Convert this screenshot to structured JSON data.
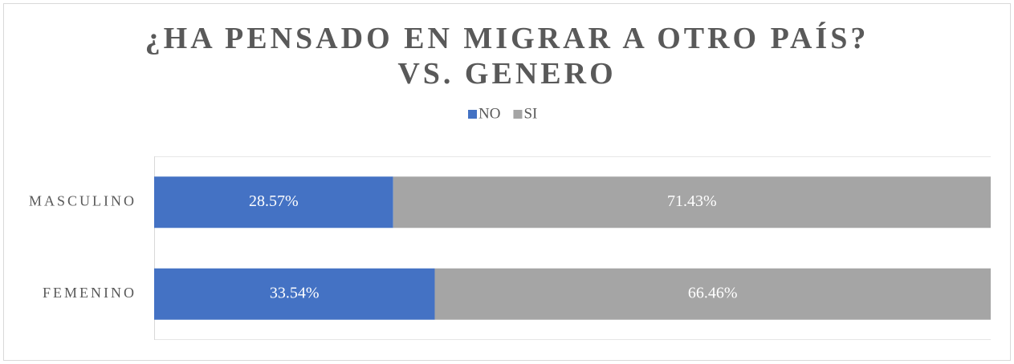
{
  "chart_data": {
    "type": "stacked-bar-horizontal",
    "title": "¿HA PENSADO EN MIGRAR A OTRO PAÍS? VS. GENERO",
    "categories": [
      "MASCULINO",
      "FEMENINO"
    ],
    "series": [
      {
        "name": "NO",
        "color": "#4472c4",
        "values": [
          28.57,
          33.54
        ],
        "value_labels": [
          "28.57%",
          "33.54%"
        ]
      },
      {
        "name": "SI",
        "color": "#a5a5a5",
        "values": [
          71.43,
          66.46
        ],
        "value_labels": [
          "71.43%",
          "66.46%"
        ]
      }
    ],
    "xlim": [
      0,
      100
    ],
    "legend": "top"
  }
}
